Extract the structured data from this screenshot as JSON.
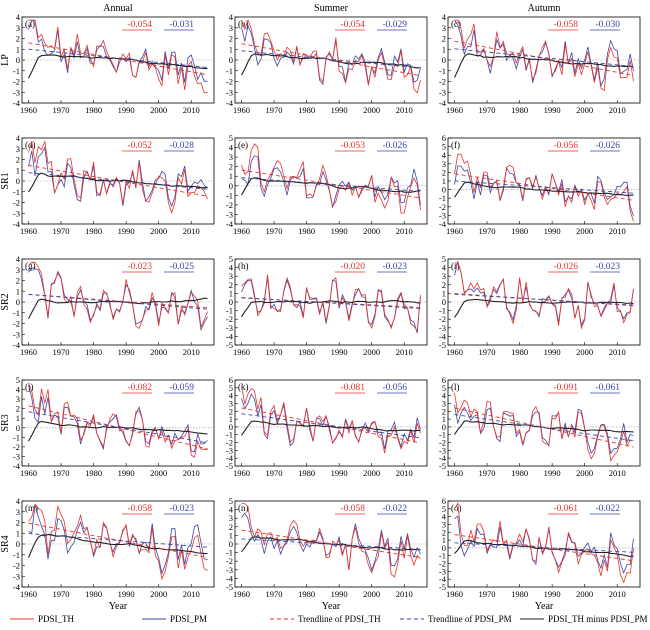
{
  "columns": [
    "Annual",
    "Summer",
    "Autumn"
  ],
  "rows": [
    "LP",
    "SR1",
    "SR2",
    "SR3",
    "SR4"
  ],
  "xlabel": "Year",
  "x_ticks": [
    1960,
    1970,
    1980,
    1990,
    2000,
    2010
  ],
  "colors": {
    "th": "#e8332b",
    "pm": "#3a46a8",
    "diff": "#222222",
    "grid": "#999999"
  },
  "legend": [
    {
      "label": "PDSI_TH",
      "style": "solid",
      "color": "#e8332b"
    },
    {
      "label": "PDSI_PM",
      "style": "solid",
      "color": "#3a46a8"
    },
    {
      "label": "Trendline of PDSI_TH",
      "style": "dashed",
      "color": "#e8332b"
    },
    {
      "label": "Trendline of PDSI_PM",
      "style": "dashed",
      "color": "#3a46a8"
    },
    {
      "label": "PDSI_TH minus PDSI_PM",
      "style": "solid",
      "color": "#222222"
    }
  ],
  "chart_data": [
    {
      "type": "line",
      "panel": "(a)",
      "row": "LP",
      "column": "Annual",
      "ylim": [
        -4,
        4
      ],
      "yticks": [
        -4,
        -3,
        -2,
        -1,
        0,
        1,
        2,
        3,
        4
      ],
      "slope_th": "-0.054",
      "slope_pm": "-0.031",
      "x_start": 1960,
      "x_end": 2015
    },
    {
      "type": "line",
      "panel": "(b)",
      "row": "LP",
      "column": "Summer",
      "ylim": [
        -4,
        4
      ],
      "yticks": [
        -4,
        -3,
        -2,
        -1,
        0,
        1,
        2,
        3,
        4
      ],
      "slope_th": "-0.054",
      "slope_pm": "-0.029",
      "x_start": 1960,
      "x_end": 2015
    },
    {
      "type": "line",
      "panel": "(c)",
      "row": "LP",
      "column": "Autumn",
      "ylim": [
        -4,
        4
      ],
      "yticks": [
        -4,
        -3,
        -2,
        -1,
        0,
        1,
        2,
        3,
        4
      ],
      "slope_th": "-0.058",
      "slope_pm": "-0.030",
      "x_start": 1960,
      "x_end": 2015
    },
    {
      "type": "line",
      "panel": "(d)",
      "row": "SR1",
      "column": "Annual",
      "ylim": [
        -4,
        4
      ],
      "yticks": [
        -4,
        -3,
        -2,
        -1,
        0,
        1,
        2,
        3,
        4
      ],
      "slope_th": "-0.052",
      "slope_pm": "-0.028",
      "x_start": 1960,
      "x_end": 2015
    },
    {
      "type": "line",
      "panel": "(e)",
      "row": "SR1",
      "column": "Summer",
      "ylim": [
        -4,
        5
      ],
      "yticks": [
        -4,
        -3,
        -2,
        -1,
        0,
        1,
        2,
        3,
        4,
        5
      ],
      "slope_th": "-0.053",
      "slope_pm": "-0.026",
      "x_start": 1960,
      "x_end": 2015
    },
    {
      "type": "line",
      "panel": "(f)",
      "row": "SR1",
      "column": "Autumn",
      "ylim": [
        -4,
        6
      ],
      "yticks": [
        -4,
        -3,
        -2,
        -1,
        0,
        1,
        2,
        3,
        4,
        5,
        6
      ],
      "slope_th": "-0.056",
      "slope_pm": "-0.026",
      "x_start": 1960,
      "x_end": 2015
    },
    {
      "type": "line",
      "panel": "(g)",
      "row": "SR2",
      "column": "Annual",
      "ylim": [
        -4,
        4
      ],
      "yticks": [
        -4,
        -3,
        -2,
        -1,
        0,
        1,
        2,
        3,
        4
      ],
      "slope_th": "-0.023",
      "slope_pm": "-0.025",
      "x_start": 1960,
      "x_end": 2015
    },
    {
      "type": "line",
      "panel": "(h)",
      "row": "SR2",
      "column": "Summer",
      "ylim": [
        -5,
        5
      ],
      "yticks": [
        -5,
        -4,
        -3,
        -2,
        -1,
        0,
        1,
        2,
        3,
        4,
        5
      ],
      "slope_th": "-0.020",
      "slope_pm": "-0.023",
      "x_start": 1960,
      "x_end": 2015
    },
    {
      "type": "line",
      "panel": "(i)",
      "row": "SR2",
      "column": "Autumn",
      "ylim": [
        -5,
        5
      ],
      "yticks": [
        -5,
        -4,
        -3,
        -2,
        -1,
        0,
        1,
        2,
        3,
        4,
        5
      ],
      "slope_th": "-0.026",
      "slope_pm": "-0.023",
      "x_start": 1960,
      "x_end": 2015
    },
    {
      "type": "line",
      "panel": "(j)",
      "row": "SR3",
      "column": "Annual",
      "ylim": [
        -4,
        5
      ],
      "yticks": [
        -4,
        -3,
        -2,
        -1,
        0,
        1,
        2,
        3,
        4,
        5
      ],
      "slope_th": "-0.082",
      "slope_pm": "-0.059",
      "x_start": 1960,
      "x_end": 2015
    },
    {
      "type": "line",
      "panel": "(k)",
      "row": "SR3",
      "column": "Summer",
      "ylim": [
        -5,
        6
      ],
      "yticks": [
        -5,
        -4,
        -3,
        -2,
        -1,
        0,
        1,
        2,
        3,
        4,
        5,
        6
      ],
      "slope_th": "-0.081",
      "slope_pm": "-0.056",
      "x_start": 1960,
      "x_end": 2015
    },
    {
      "type": "line",
      "panel": "(l)",
      "row": "SR3",
      "column": "Autumn",
      "ylim": [
        -5,
        6
      ],
      "yticks": [
        -5,
        -4,
        -3,
        -2,
        -1,
        0,
        1,
        2,
        3,
        4,
        5,
        6
      ],
      "slope_th": "-0.091",
      "slope_pm": "-0.061",
      "x_start": 1960,
      "x_end": 2015
    },
    {
      "type": "line",
      "panel": "(m)",
      "row": "SR4",
      "column": "Annual",
      "ylim": [
        -4,
        4
      ],
      "yticks": [
        -4,
        -3,
        -2,
        -1,
        0,
        1,
        2,
        3,
        4
      ],
      "slope_th": "-0.058",
      "slope_pm": "-0.023",
      "x_start": 1960,
      "x_end": 2015
    },
    {
      "type": "line",
      "panel": "(n)",
      "row": "SR4",
      "column": "Summer",
      "ylim": [
        -5,
        5
      ],
      "yticks": [
        -5,
        -4,
        -3,
        -2,
        -1,
        0,
        1,
        2,
        3,
        4,
        5
      ],
      "slope_th": "-0.058",
      "slope_pm": "-0.022",
      "x_start": 1960,
      "x_end": 2015
    },
    {
      "type": "line",
      "panel": "(o)",
      "row": "SR4",
      "column": "Autumn",
      "ylim": [
        -5,
        6
      ],
      "yticks": [
        -5,
        -4,
        -3,
        -2,
        -1,
        0,
        1,
        2,
        3,
        4,
        5,
        6
      ],
      "slope_th": "-0.061",
      "slope_pm": "-0.022",
      "x_start": 1960,
      "x_end": 2015
    }
  ]
}
